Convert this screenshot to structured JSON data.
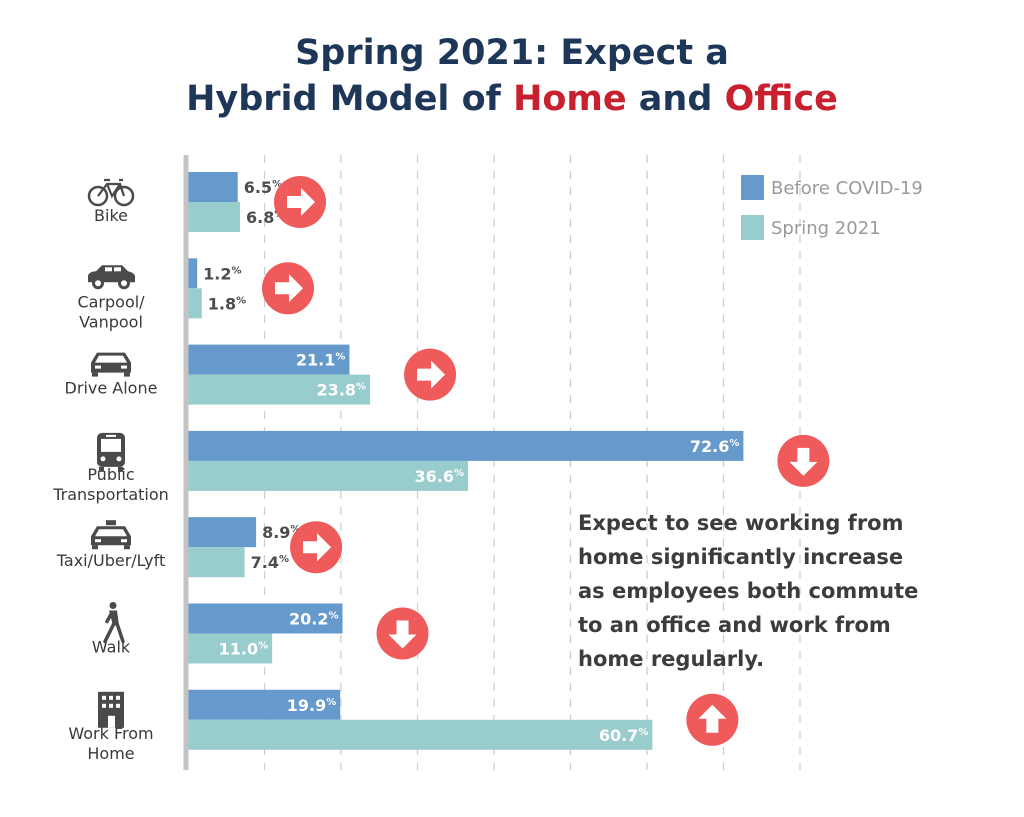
{
  "chart_data": {
    "type": "bar",
    "title_lines": [
      [
        {
          "text": "Spring 2021: Expect a",
          "highlight": false
        }
      ],
      [
        {
          "text": "Hybrid Model of ",
          "highlight": false
        },
        {
          "text": "Home",
          "highlight": true
        },
        {
          "text": " and ",
          "highlight": false
        },
        {
          "text": "Office",
          "highlight": true
        }
      ]
    ],
    "orientation": "horizontal",
    "unit": "%",
    "xlim": [
      0,
      80
    ],
    "grid": true,
    "legend_position": "top-right",
    "categories": [
      {
        "lines": [
          "Bike"
        ],
        "icon": "bike-icon",
        "trend": "right"
      },
      {
        "lines": [
          "Carpool/",
          "Vanpool"
        ],
        "icon": "car-icon",
        "trend": "right"
      },
      {
        "lines": [
          "Drive Alone"
        ],
        "icon": "car-front-icon",
        "trend": "right"
      },
      {
        "lines": [
          "Public",
          "Transportation"
        ],
        "icon": "bus-icon",
        "trend": "down"
      },
      {
        "lines": [
          "Taxi/Uber/Lyft"
        ],
        "icon": "taxi-icon",
        "trend": "right"
      },
      {
        "lines": [
          "Walk"
        ],
        "icon": "walker-icon",
        "trend": "down"
      },
      {
        "lines": [
          "Work From",
          "Home"
        ],
        "icon": "house-icon",
        "trend": "up"
      }
    ],
    "series": [
      {
        "name": "Before COVID-19",
        "color": "#6699cc",
        "values": [
          6.5,
          1.2,
          21.1,
          72.6,
          8.9,
          20.2,
          19.9
        ],
        "labels": [
          "6.5",
          "1.2",
          "21.1",
          "72.6",
          "8.9",
          "20.2",
          "19.9"
        ]
      },
      {
        "name": "Spring 2021",
        "color": "#99cccc",
        "values": [
          6.8,
          1.8,
          23.8,
          36.6,
          7.4,
          11.0,
          60.7
        ],
        "labels": [
          "6.8",
          "1.8",
          "23.8",
          "36.6",
          "7.4",
          "11.0",
          "60.7"
        ]
      }
    ],
    "annotation_lines": [
      "Expect to see working from",
      "home significantly increase",
      "as employees both commute",
      "to an office and work from",
      "home regularly."
    ]
  },
  "colors": {
    "title": "#1e3758",
    "highlight": "#c8202f",
    "arrow": "#ef5a5a",
    "axis": "#c4c4c4",
    "grid": "#cccccc",
    "label_dark": "#4d4d4d",
    "icon": "#4a4a4a"
  }
}
